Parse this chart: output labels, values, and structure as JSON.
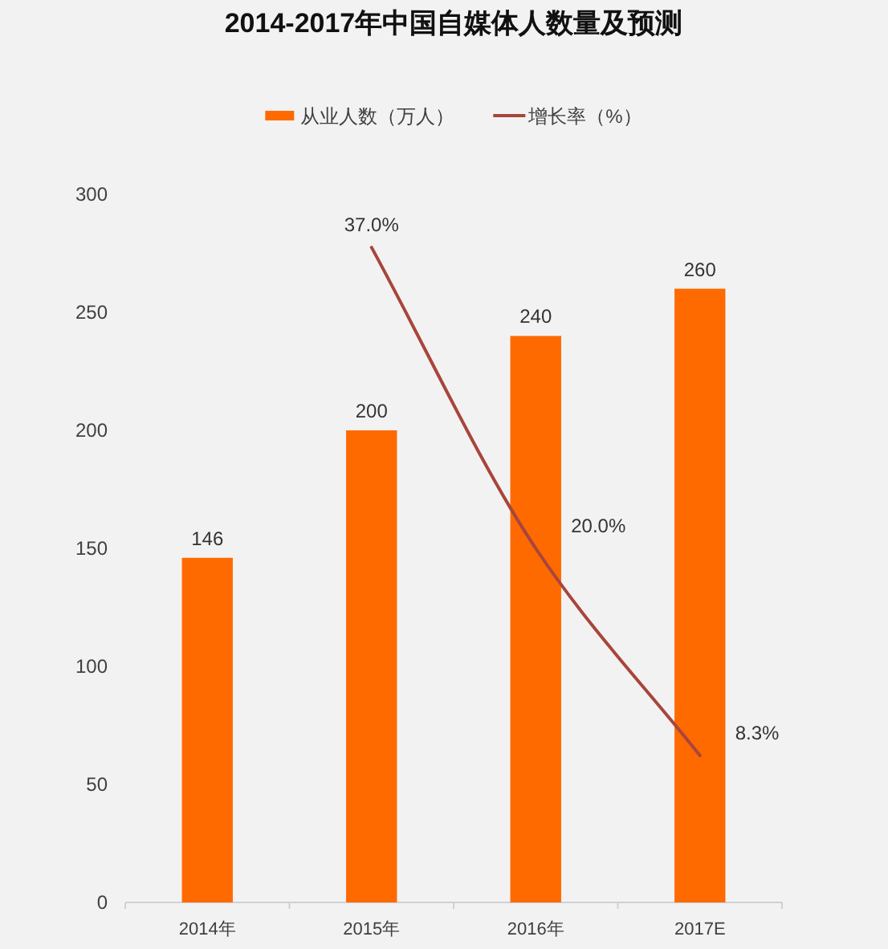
{
  "chart_data": {
    "type": "bar",
    "title": "2014-2017年中国自媒体人数量及预测",
    "categories": [
      "2014年",
      "2015年",
      "2016年",
      "2017E"
    ],
    "series": [
      {
        "name": "从业人数（万人）",
        "color": "#ff6a00",
        "values": [
          146,
          200,
          240,
          260
        ],
        "value_labels": [
          "146",
          "200",
          "240",
          "260"
        ]
      },
      {
        "name": "增长率（%）",
        "type": "line",
        "axis": "y2",
        "color": "#a8453c",
        "values": [
          null,
          37.0,
          20.0,
          8.3
        ],
        "value_labels": [
          null,
          "37.0%",
          "20.0%",
          "8.3%"
        ]
      }
    ],
    "ylim": [
      0,
      300
    ],
    "yticks": [
      0,
      50,
      100,
      150,
      200,
      250,
      300
    ],
    "legend": "top"
  }
}
